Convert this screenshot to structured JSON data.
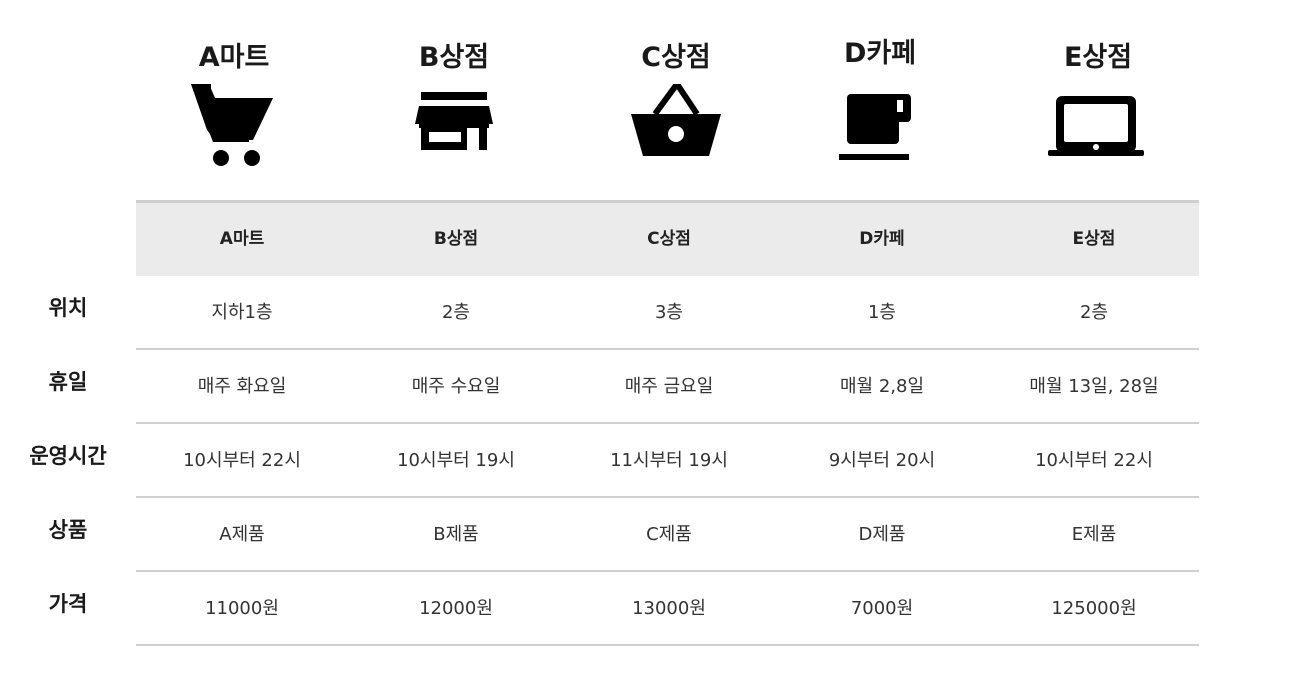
{
  "stores": [
    {
      "name": "A마트",
      "icon": "shopping-cart-icon"
    },
    {
      "name": "B상점",
      "icon": "storefront-icon"
    },
    {
      "name": "C상점",
      "icon": "shopping-basket-icon"
    },
    {
      "name": "D카페",
      "icon": "coffee-cup-icon"
    },
    {
      "name": "E상점",
      "icon": "laptop-icon"
    }
  ],
  "table": {
    "header": [
      "A마트",
      "B상점",
      "C상점",
      "D카페",
      "E상점"
    ],
    "rows": [
      {
        "label": "위치",
        "cells": [
          "지하1층",
          "2층",
          "3층",
          "1층",
          "2층"
        ]
      },
      {
        "label": "휴일",
        "cells": [
          "매주 화요일",
          "매주 수요일",
          "매주 금요일",
          "매월 2,8일",
          "매월 13일, 28일"
        ]
      },
      {
        "label": "운영시간",
        "cells": [
          "10시부터 22시",
          "10시부터 19시",
          "11시부터 19시",
          "9시부터 20시",
          "10시부터 22시"
        ]
      },
      {
        "label": "상품",
        "cells": [
          "A제품",
          "B제품",
          "C제품",
          "D제품",
          "E제품"
        ]
      },
      {
        "label": "가격",
        "cells": [
          "11000원",
          "12000원",
          "13000원",
          "7000원",
          "125000원"
        ]
      }
    ]
  },
  "colors": {
    "header_background": "#ebebeb",
    "divider": "#cfcfcf",
    "icon": "#000000"
  }
}
